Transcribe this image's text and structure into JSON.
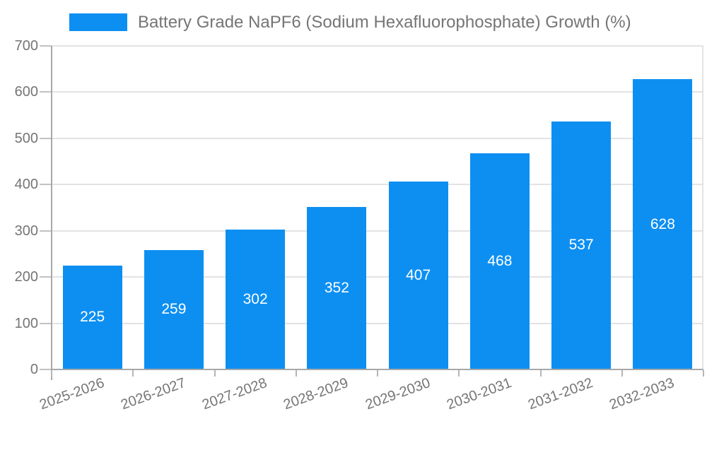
{
  "legend": {
    "label": "Battery Grade NaPF6 (Sodium Hexafluorophosphate) Growth (%)"
  },
  "chart_data": {
    "type": "bar",
    "title": "Battery Grade NaPF6 (Sodium Hexafluorophosphate) Growth (%)",
    "categories": [
      "2025-2026",
      "2026-2027",
      "2027-2028",
      "2028-2029",
      "2029-2030",
      "2030-2031",
      "2031-2032",
      "2032-2033"
    ],
    "values": [
      225,
      259,
      302,
      352,
      407,
      468,
      537,
      628
    ],
    "value_labels": [
      "225",
      "259",
      "302",
      "352",
      "407",
      "468",
      "537",
      "628"
    ],
    "xlabel": "",
    "ylabel": "",
    "ylim": [
      0,
      700
    ],
    "yticks": [
      0,
      100,
      200,
      300,
      400,
      500,
      600,
      700
    ],
    "grid": true,
    "legend_position": "top",
    "x_label_rotation_deg": -20,
    "colors": {
      "bar": "#0D8FF2",
      "text": "#757575",
      "value_label": "#FFFFFF",
      "grid": "#E3E3E3",
      "axis": "#A8A8A8",
      "tick": "#C2C2C2",
      "x_tick": "#B5B5B5",
      "background": "#FFFFFF"
    }
  }
}
